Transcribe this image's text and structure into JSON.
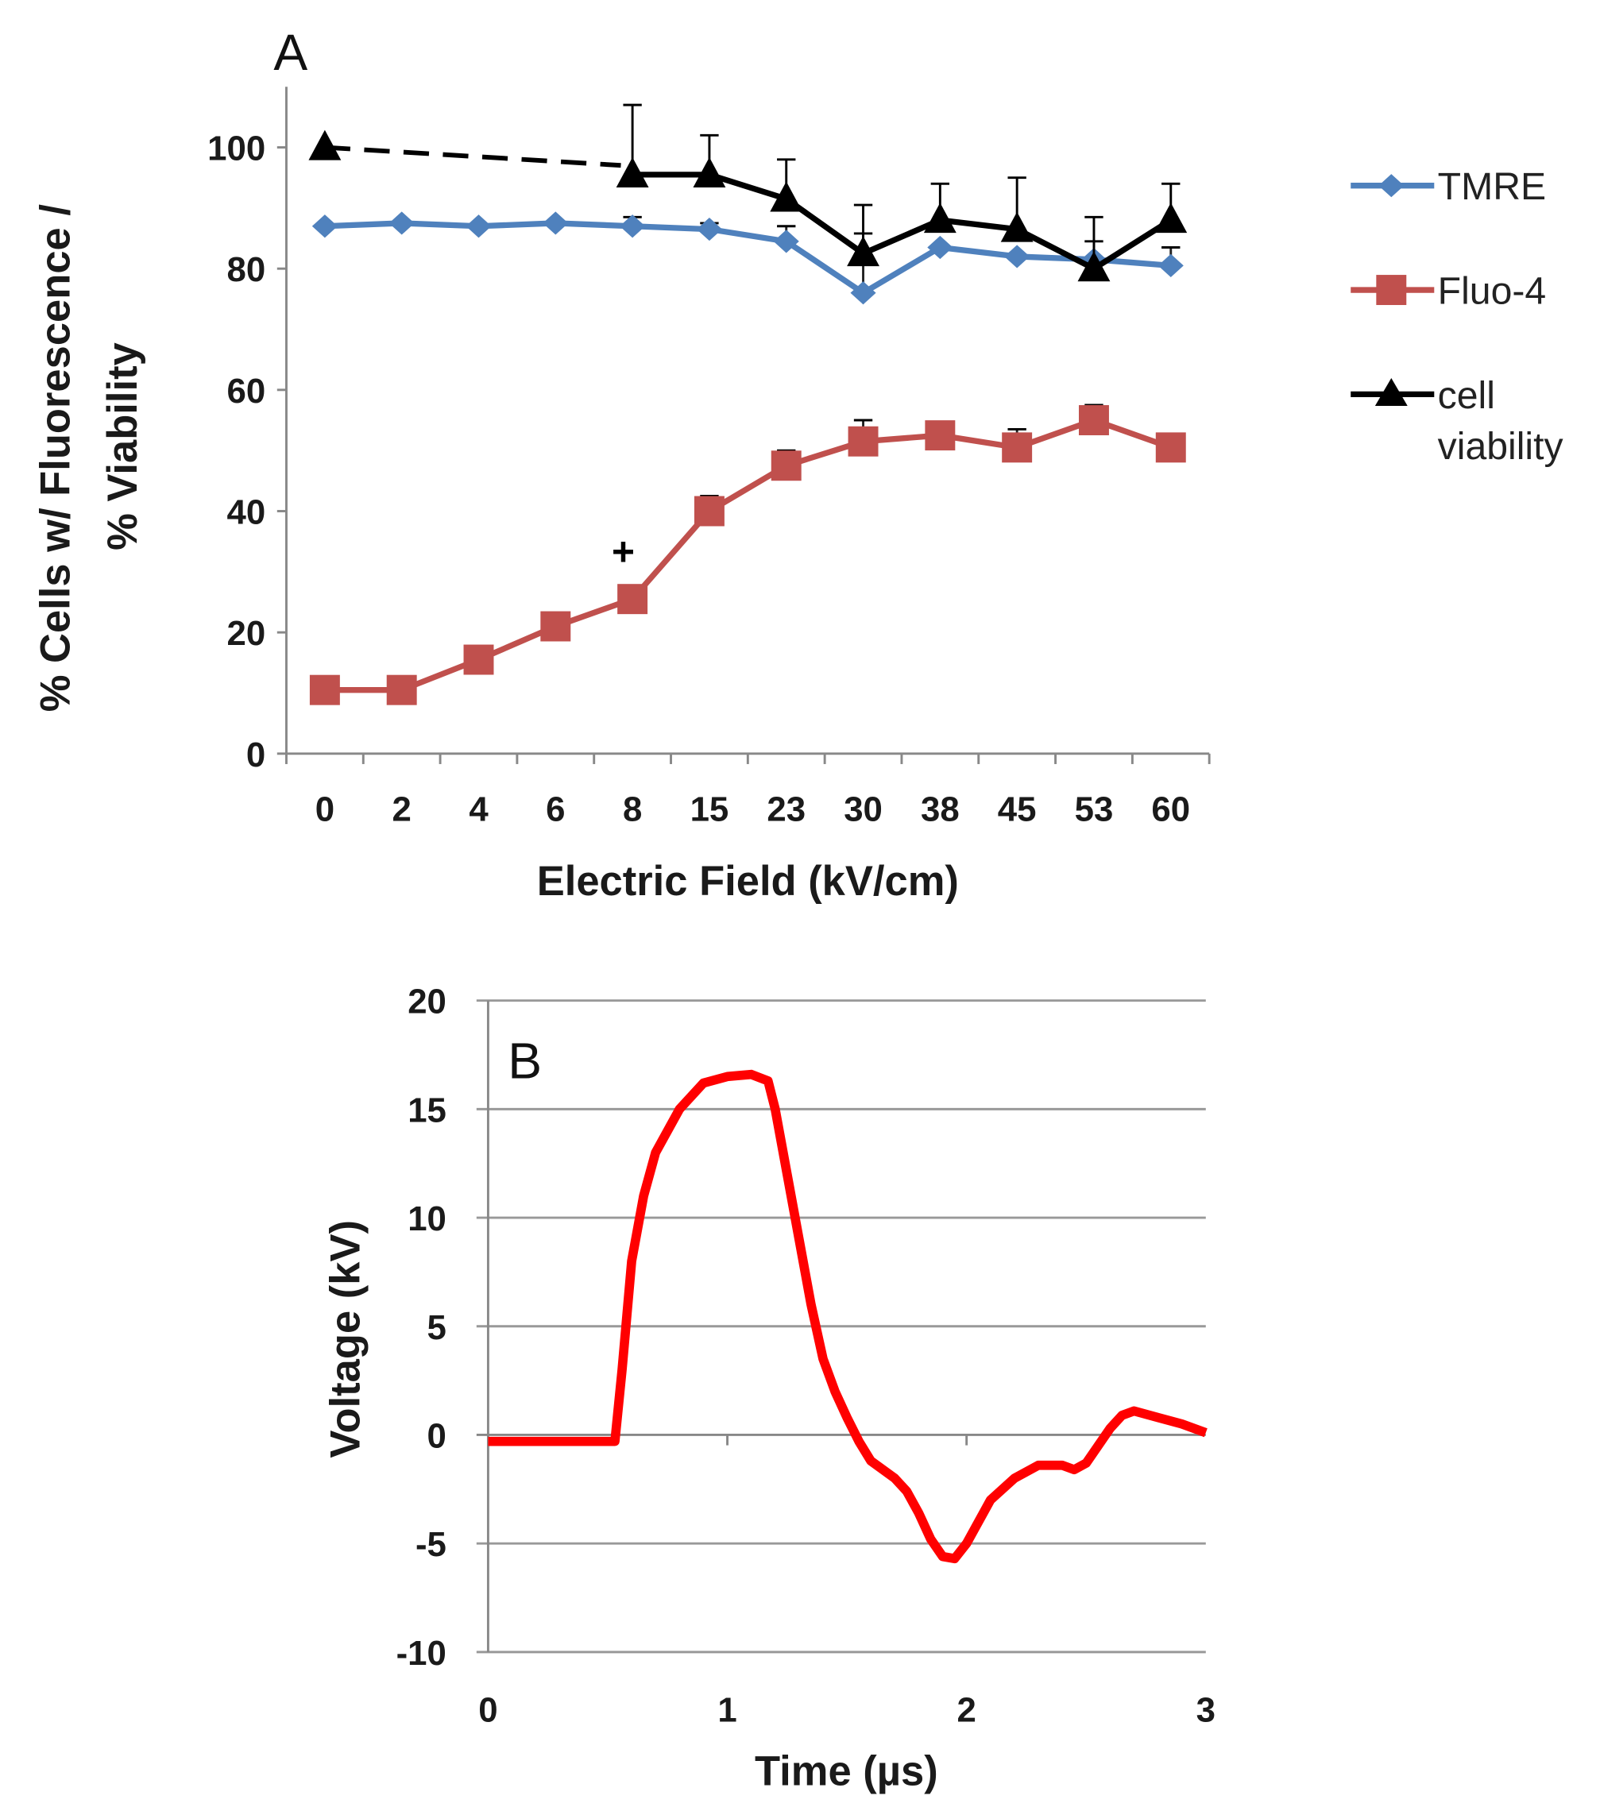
{
  "chart_data": [
    {
      "panel": "A",
      "type": "line",
      "xlabel": "Electric Field (kV/cm)",
      "ylabel_lines": [
        "% Cells w/ Fluorescence /",
        "% Viability"
      ],
      "categories": [
        "0",
        "2",
        "4",
        "6",
        "8",
        "15",
        "23",
        "30",
        "38",
        "45",
        "53",
        "60"
      ],
      "ylim": [
        0,
        110
      ],
      "yticks": [
        0,
        20,
        40,
        60,
        80,
        100
      ],
      "grid": false,
      "legend_position": "right",
      "annotation": {
        "text": "+",
        "category": "8",
        "y": 33
      },
      "series": [
        {
          "name": "TMRE",
          "color": "#4f81bd",
          "marker": "diamond",
          "values": [
            87,
            87.5,
            87,
            87.5,
            87,
            86.5,
            84.5,
            76,
            83.5,
            82,
            81.5,
            80.5
          ],
          "error_up": [
            0,
            0,
            0,
            0,
            1.5,
            1,
            2.5,
            9.8,
            0,
            0,
            3,
            3
          ]
        },
        {
          "name": "Fluo-4",
          "color": "#c0504d",
          "marker": "square",
          "values": [
            10.5,
            10.5,
            15.5,
            21,
            25.5,
            40,
            47.5,
            51.5,
            52.5,
            50.5,
            55,
            50.5
          ],
          "error_up": [
            0,
            0,
            0,
            0,
            0,
            2.5,
            2.5,
            3.5,
            0,
            3,
            2.5,
            0
          ]
        },
        {
          "name_lines": [
            "cell",
            "viability"
          ],
          "color": "#000000",
          "marker": "triangle",
          "values": [
            100,
            null,
            null,
            null,
            95.5,
            95.5,
            91.5,
            82.5,
            88,
            86.5,
            80,
            88
          ],
          "error_up": [
            0,
            0,
            0,
            0,
            11.5,
            6.5,
            6.5,
            8,
            6,
            8.5,
            8.5,
            6
          ],
          "dashed_segment": [
            "0",
            "8"
          ]
        }
      ]
    },
    {
      "panel": "B",
      "type": "line",
      "xlabel": "Time (µs)",
      "ylabel": "Voltage (kV)",
      "xlim": [
        0,
        3
      ],
      "ylim": [
        -10,
        20
      ],
      "xticks": [
        0,
        1,
        2,
        3
      ],
      "yticks": [
        -10,
        -5,
        0,
        5,
        10,
        15,
        20
      ],
      "grid": true,
      "series": [
        {
          "name": "voltage",
          "color": "#ff0000",
          "x": [
            0,
            0.5,
            0.53,
            0.56,
            0.6,
            0.65,
            0.7,
            0.8,
            0.9,
            1.0,
            1.1,
            1.17,
            1.2,
            1.25,
            1.3,
            1.35,
            1.4,
            1.45,
            1.5,
            1.55,
            1.6,
            1.7,
            1.75,
            1.8,
            1.85,
            1.9,
            1.95,
            2.0,
            2.05,
            2.1,
            2.2,
            2.3,
            2.4,
            2.45,
            2.5,
            2.55,
            2.6,
            2.65,
            2.7,
            2.8,
            2.9,
            3.0
          ],
          "y": [
            -0.3,
            -0.3,
            -0.3,
            3,
            8,
            11,
            13,
            15,
            16.2,
            16.5,
            16.6,
            16.3,
            15,
            12,
            9,
            6,
            3.5,
            2,
            0.8,
            -0.3,
            -1.2,
            -2,
            -2.6,
            -3.6,
            -4.8,
            -5.6,
            -5.7,
            -5,
            -4,
            -3,
            -2,
            -1.4,
            -1.4,
            -1.6,
            -1.3,
            -0.5,
            0.3,
            0.9,
            1.1,
            0.8,
            0.5,
            0.1
          ]
        }
      ]
    }
  ]
}
